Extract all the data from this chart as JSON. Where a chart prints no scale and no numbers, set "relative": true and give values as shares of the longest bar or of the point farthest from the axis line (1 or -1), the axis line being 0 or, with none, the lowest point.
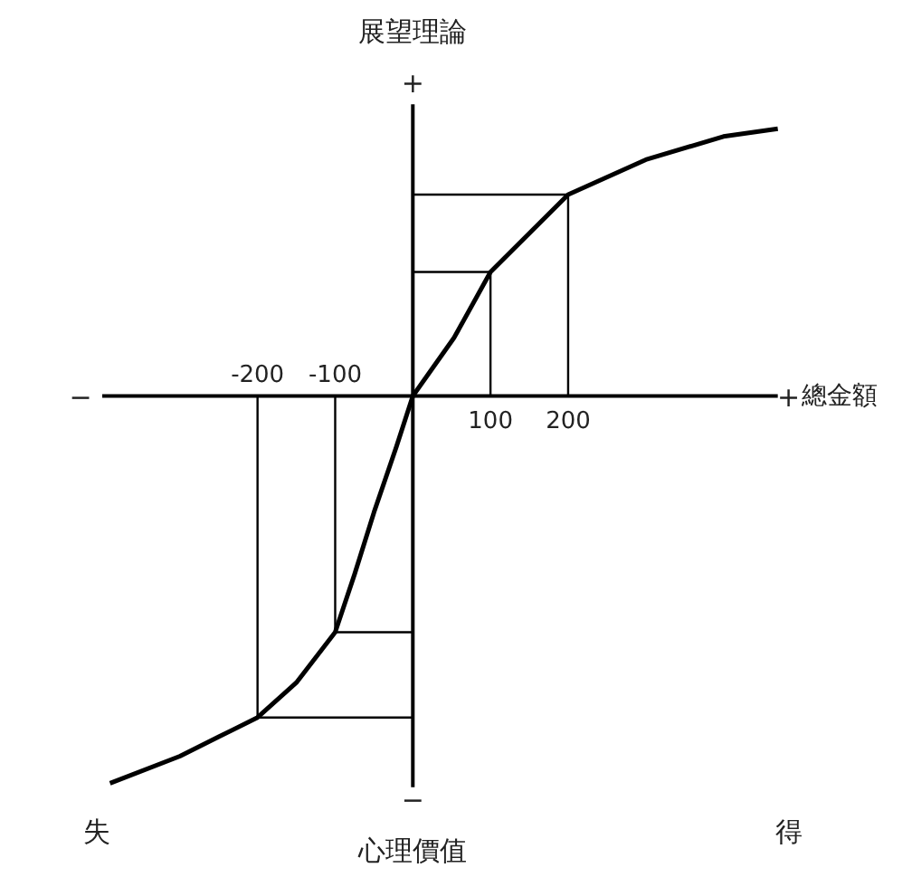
{
  "chart_data": {
    "type": "line",
    "title": "展望理論",
    "xlabel": "總金額",
    "relative": true,
    "xlim": [
      -400,
      470
    ],
    "xticks": [
      100,
      200
    ],
    "grid": false,
    "annotations": [
      "+",
      "−",
      "+",
      "−",
      "失",
      "得",
      "心理價值",
      {
        "text": "-200",
        "x": -200,
        "y": 0
      },
      {
        "text": "-100",
        "x": -100,
        "y": 0
      }
    ],
    "series": [
      {
        "color": "#000000",
        "x": [
          -390,
          -300,
          -250,
          -200,
          -150,
          -100,
          -75,
          -50,
          -21,
          0,
          53,
          100,
          200,
          300,
          400,
          470
        ],
        "values": [
          -1,
          -0.93,
          -0.88,
          -0.83,
          -0.74,
          -0.61,
          -0.46,
          -0.3,
          -0.13,
          0,
          0.15,
          0.32,
          0.52,
          0.61,
          0.67,
          0.69
        ]
      },
      {
        "color": "#000000",
        "x": [
          100,
          100,
          0
        ],
        "values": [
          0,
          0.32,
          0.32
        ]
      },
      {
        "color": "#000000",
        "x": [
          200,
          200,
          0
        ],
        "values": [
          0,
          0.52,
          0.52
        ]
      },
      {
        "color": "#000000",
        "x": [
          -100,
          -100,
          0
        ],
        "values": [
          0,
          -0.61,
          -0.61
        ]
      },
      {
        "color": "#000000",
        "x": [
          -200,
          -200,
          0
        ],
        "values": [
          0,
          -0.83,
          -0.83
        ]
      }
    ]
  }
}
